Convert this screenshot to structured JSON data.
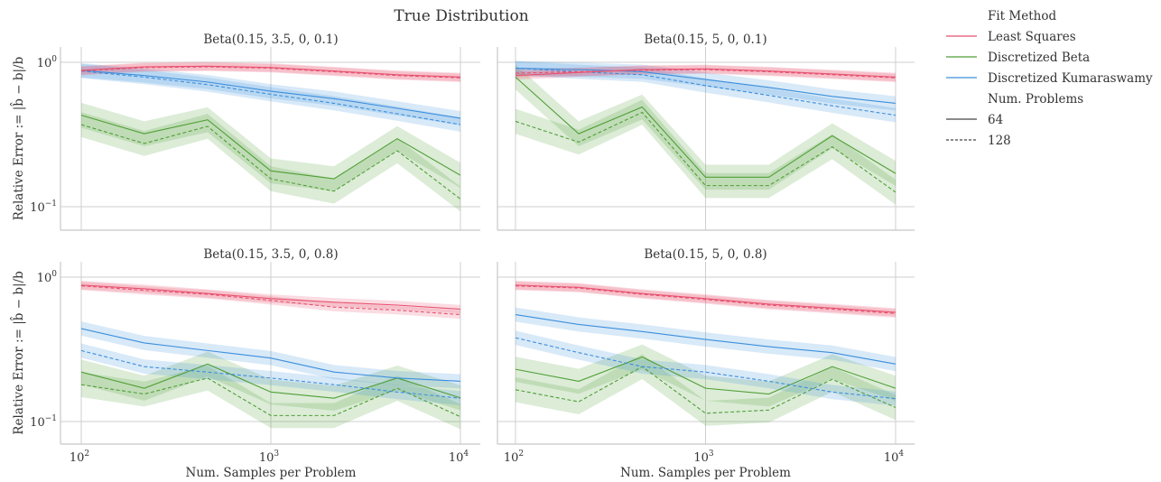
{
  "chart_data": {
    "type": "line",
    "title": "True Distribution",
    "xlabel": "Num. Samples per Problem",
    "ylabel": "Relative Error := |b̂ − b|/b",
    "xscale": "log",
    "yscale": "log",
    "xlim": [
      80,
      12500
    ],
    "xticks": [
      100,
      1000,
      10000
    ],
    "xtick_labels": [
      [
        "10",
        "2"
      ],
      [
        "10",
        "3"
      ],
      [
        "10",
        "4"
      ]
    ],
    "ytick_labels": [
      [
        "10",
        "0"
      ],
      [
        "10",
        "−1"
      ]
    ],
    "yticks": [
      1,
      0.1
    ],
    "grid": true,
    "x": [
      100,
      215,
      464,
      1000,
      2154,
      4642,
      10000
    ],
    "legend": {
      "placement": "right",
      "hue_title": "Fit Method",
      "style_title": "Num. Problems",
      "methods": [
        {
          "key": "ls",
          "label": "Least Squares",
          "color": "#e8516f",
          "ci_factor": 1.07
        },
        {
          "key": "beta",
          "label": "Discretized Beta",
          "color": "#4f9f36",
          "ci_factor": 1.22
        },
        {
          "key": "kuma",
          "label": "Discretized Kumaraswamy",
          "color": "#3b8fdc",
          "ci_factor": 1.12
        }
      ],
      "styles": [
        {
          "label": "64",
          "dash": "solid"
        },
        {
          "label": "128",
          "dash": "dashed"
        }
      ]
    },
    "panels": [
      {
        "title": "Beta(0.15, 3.5, 0, 0.1)",
        "ylim": [
          0.068,
          1.28
        ],
        "series": {
          "ls": {
            "64": [
              0.88,
              0.93,
              0.94,
              0.92,
              0.87,
              0.82,
              0.79
            ],
            "128": [
              0.87,
              0.92,
              0.93,
              0.91,
              0.86,
              0.81,
              0.78
            ]
          },
          "kuma": {
            "64": [
              0.88,
              0.81,
              0.73,
              0.63,
              0.56,
              0.48,
              0.41
            ],
            "128": [
              0.87,
              0.79,
              0.7,
              0.6,
              0.52,
              0.44,
              0.37
            ]
          },
          "beta": {
            "64": [
              0.43,
              0.32,
              0.4,
              0.177,
              0.156,
              0.296,
              0.165
            ],
            "128": [
              0.37,
              0.274,
              0.36,
              0.156,
              0.128,
              0.244,
              0.113
            ]
          }
        }
      },
      {
        "title": "Beta(0.15, 5, 0, 0.1)",
        "ylim": [
          0.068,
          1.28
        ],
        "series": {
          "ls": {
            "64": [
              0.81,
              0.85,
              0.89,
              0.9,
              0.87,
              0.83,
              0.79
            ],
            "128": [
              0.84,
              0.86,
              0.88,
              0.89,
              0.86,
              0.82,
              0.78
            ]
          },
          "kuma": {
            "64": [
              0.91,
              0.89,
              0.86,
              0.76,
              0.67,
              0.58,
              0.52
            ],
            "128": [
              0.91,
              0.86,
              0.82,
              0.69,
              0.59,
              0.5,
              0.43
            ]
          },
          "beta": {
            "64": [
              0.79,
              0.32,
              0.49,
              0.16,
              0.16,
              0.31,
              0.17
            ],
            "128": [
              0.39,
              0.28,
              0.45,
              0.14,
              0.14,
              0.26,
              0.126
            ]
          }
        }
      },
      {
        "title": "Beta(0.15, 3.5, 0, 0.8)",
        "ylim": [
          0.068,
          1.28
        ],
        "series": {
          "ls": {
            "64": [
              0.88,
              0.83,
              0.77,
              0.71,
              0.67,
              0.64,
              0.6
            ],
            "128": [
              0.87,
              0.81,
              0.76,
              0.69,
              0.62,
              0.59,
              0.55
            ]
          },
          "kuma": {
            "64": [
              0.44,
              0.35,
              0.31,
              0.275,
              0.22,
              0.2,
              0.19
            ],
            "128": [
              0.31,
              0.24,
              0.22,
              0.2,
              0.18,
              0.16,
              0.145
            ]
          },
          "beta": {
            "64": [
              0.22,
              0.17,
              0.25,
              0.16,
              0.145,
              0.2,
              0.146
            ],
            "128": [
              0.18,
              0.155,
              0.2,
              0.11,
              0.11,
              0.17,
              0.108
            ]
          }
        }
      },
      {
        "title": "Beta(0.15, 5, 0, 0.8)",
        "ylim": [
          0.068,
          1.28
        ],
        "series": {
          "ls": {
            "64": [
              0.88,
              0.85,
              0.77,
              0.71,
              0.65,
              0.61,
              0.57
            ],
            "128": [
              0.87,
              0.84,
              0.76,
              0.7,
              0.64,
              0.6,
              0.56
            ]
          },
          "kuma": {
            "64": [
              0.55,
              0.47,
              0.42,
              0.37,
              0.33,
              0.3,
              0.25
            ],
            "128": [
              0.38,
              0.3,
              0.24,
              0.22,
              0.19,
              0.16,
              0.144
            ]
          },
          "beta": {
            "64": [
              0.23,
              0.19,
              0.28,
              0.17,
              0.155,
              0.24,
              0.17
            ],
            "128": [
              0.166,
              0.137,
              0.24,
              0.114,
              0.12,
              0.196,
              0.125
            ]
          }
        }
      }
    ]
  }
}
